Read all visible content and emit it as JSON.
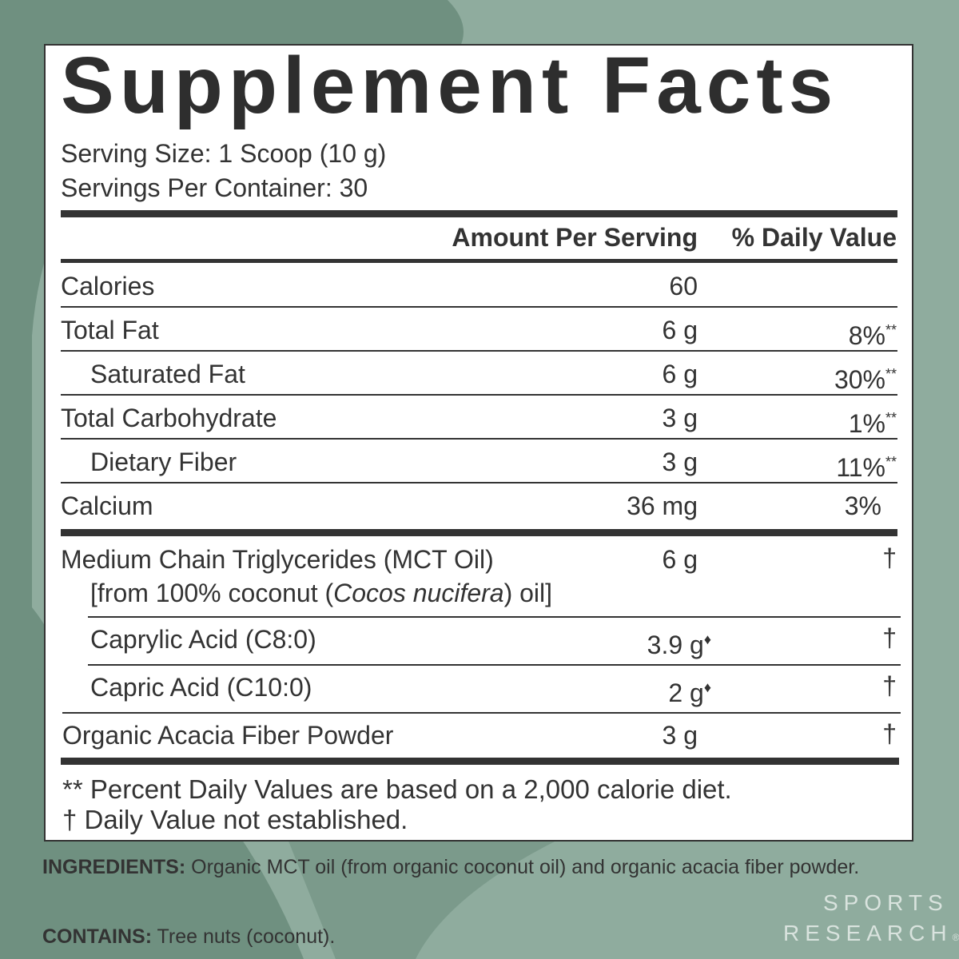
{
  "header": {
    "title": "Supplement Facts",
    "serving_size": "Serving Size: 1 Scoop (10 g)",
    "servings_per_container": "Servings Per Container: 30"
  },
  "columns": {
    "amount": "Amount Per Serving",
    "daily_value": "% Daily Value"
  },
  "rows": [
    {
      "name": "Calories",
      "amount": "60"
    },
    {
      "name": "Total Fat",
      "amount": "6 g",
      "dv": "8%",
      "dv_mark": "**",
      "sub_rows": [
        {
          "name": "Saturated Fat",
          "amount": "6 g",
          "dv": "30%",
          "dv_mark": "**"
        }
      ]
    },
    {
      "name": "Total Carbohydrate",
      "amount": "3 g",
      "dv": "1%",
      "dv_mark": "**",
      "sub_rows": [
        {
          "name": "Dietary Fiber",
          "amount": "3 g",
          "dv": "11%",
          "dv_mark": "**"
        }
      ]
    },
    {
      "name": "Calcium",
      "amount": "36 mg",
      "dv": "3%"
    },
    {
      "name": "Medium Chain Triglycerides (MCT Oil)",
      "source": [
        "[from 100% coconut (",
        "Cocos nucifera",
        ") oil]"
      ],
      "amount": "6 g",
      "dv": "†",
      "sub_rows": [
        {
          "name": "Caprylic Acid (C8:0)",
          "amount": "3.9 g",
          "amount_mark": "♦",
          "dv": "†"
        },
        {
          "name": "Capric Acid (C10:0)",
          "amount": "2 g",
          "amount_mark": "♦",
          "dv": "†"
        }
      ]
    },
    {
      "name": "Organic Acacia Fiber Powder",
      "amount": "3 g",
      "dv": "†"
    }
  ],
  "footnotes": [
    "** Percent Daily Values are based on a 2,000 calorie diet.",
    "† Daily Value not established."
  ],
  "ingredients": {
    "label": "INGREDIENTS:",
    "text": "Organic MCT oil (from organic coconut oil) and organic acacia fiber powder."
  },
  "contains": {
    "label": "CONTAINS:",
    "text": "Tree nuts (coconut)."
  },
  "brand": {
    "line1": "SPORTS",
    "line2": "RESEARCH",
    "mark": "®"
  }
}
